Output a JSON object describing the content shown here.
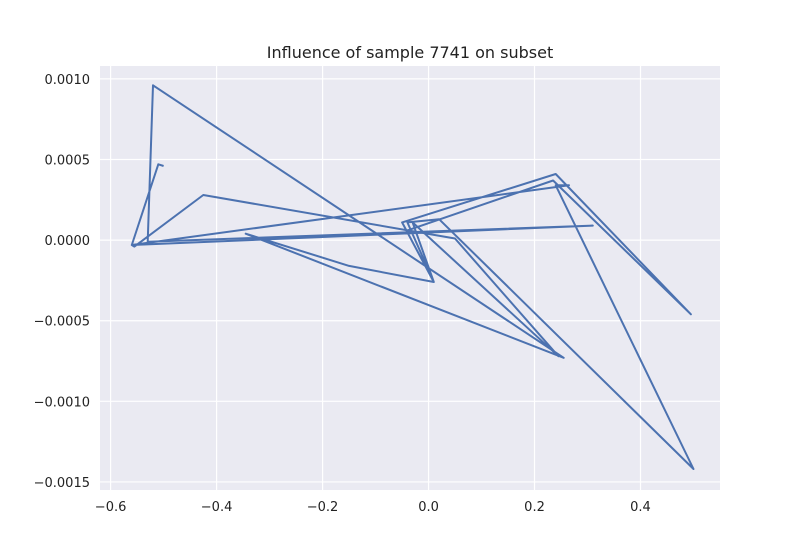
{
  "chart_data": {
    "type": "line",
    "title": "Influence of sample 7741 on subset",
    "xlabel": "",
    "ylabel": "",
    "xlim": [
      -0.62,
      0.55
    ],
    "ylim": [
      -0.00155,
      0.00108
    ],
    "grid": true,
    "x_ticks": [
      -0.6,
      -0.4,
      -0.2,
      0.0,
      0.2,
      0.4
    ],
    "x_tick_labels": [
      "−0.6",
      "−0.4",
      "−0.2",
      "0.0",
      "0.2",
      "0.4"
    ],
    "y_ticks": [
      0.001,
      0.0005,
      0.0,
      -0.0005,
      -0.001,
      -0.0015
    ],
    "y_tick_labels": [
      "0.0010",
      "0.0005",
      "0.0000",
      "−0.0005",
      "−0.0010",
      "−0.0015"
    ],
    "colors": {
      "line": "#4c72b0",
      "plot_bg": "#eaeaf2",
      "grid": "#ffffff"
    },
    "series": [
      {
        "x": [
          -0.5,
          -0.51,
          -0.56,
          -0.555,
          -0.425,
          0.05,
          0.245,
          -0.03,
          0.01,
          -0.04,
          0.02,
          0.5,
          0.24,
          0.265,
          -0.56,
          0.31,
          -0.53,
          -0.52,
          0.255,
          -0.345,
          -0.15,
          0.01,
          -0.05,
          0.24,
          0.495,
          0.235,
          -0.04
        ],
        "y": [
          0.00046,
          0.00047,
          -3e-05,
          -4e-05,
          0.00028,
          1e-05,
          -0.00072,
          0.00011,
          -0.00026,
          0.00011,
          0.00013,
          -0.00142,
          0.00034,
          0.00034,
          -3e-05,
          9e-05,
          -1e-05,
          0.00096,
          -0.00073,
          4e-05,
          -0.00016,
          -0.00026,
          0.00011,
          0.00041,
          -0.00046,
          0.00037,
          6e-05
        ]
      }
    ]
  }
}
